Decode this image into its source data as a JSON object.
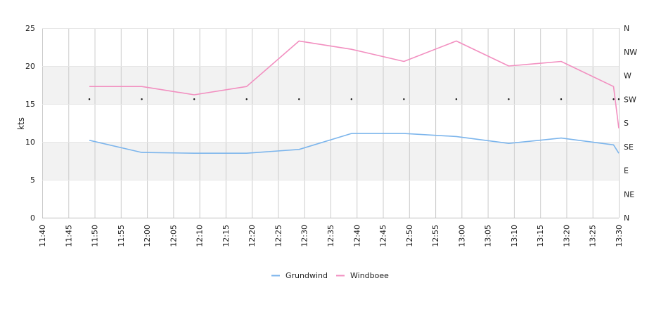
{
  "chart_data": {
    "type": "line",
    "ylabel": "kts",
    "ylim": [
      0,
      25
    ],
    "y_ticks": [
      0,
      5,
      10,
      15,
      20,
      25
    ],
    "y2_ticks": [
      "N",
      "NE",
      "E",
      "SE",
      "S",
      "SW",
      "W",
      "NW",
      "N"
    ],
    "x_ticks": [
      "11:40",
      "11:45",
      "11:50",
      "11:55",
      "12:00",
      "12:05",
      "12:10",
      "12:15",
      "12:20",
      "12:25",
      "12:30",
      "12:35",
      "12:40",
      "12:45",
      "12:50",
      "12:55",
      "13:00",
      "13:05",
      "13:10",
      "13:15",
      "13:20",
      "13:25",
      "13:30"
    ],
    "x_range": [
      "11:40",
      "13:30"
    ],
    "grid": true,
    "shaded_bands": [
      [
        5,
        10
      ],
      [
        15,
        20
      ]
    ],
    "legend_position": "bottom",
    "series": [
      {
        "name": "Grundwind",
        "color": "#7cb5ec",
        "points": [
          [
            "11:49",
            10.2
          ],
          [
            "11:59",
            8.6
          ],
          [
            "12:09",
            8.5
          ],
          [
            "12:19",
            8.5
          ],
          [
            "12:29",
            9.0
          ],
          [
            "12:39",
            11.1
          ],
          [
            "12:49",
            11.1
          ],
          [
            "12:59",
            10.7
          ],
          [
            "13:09",
            9.8
          ],
          [
            "13:19",
            10.5
          ],
          [
            "13:29",
            9.6
          ],
          [
            "13:30",
            8.5
          ]
        ]
      },
      {
        "name": "Windboee",
        "color": "#f28fc0",
        "points": [
          [
            "11:49",
            17.3
          ],
          [
            "11:59",
            17.3
          ],
          [
            "12:09",
            16.2
          ],
          [
            "12:19",
            17.3
          ],
          [
            "12:29",
            23.3
          ],
          [
            "12:39",
            22.2
          ],
          [
            "12:49",
            20.6
          ],
          [
            "12:59",
            23.3
          ],
          [
            "13:09",
            20.0
          ],
          [
            "13:19",
            20.6
          ],
          [
            "13:29",
            17.3
          ],
          [
            "13:30",
            11.8
          ]
        ]
      }
    ],
    "direction_points": [
      [
        "11:49",
        "SW"
      ],
      [
        "11:59",
        "SW"
      ],
      [
        "12:09",
        "SW"
      ],
      [
        "12:19",
        "SW"
      ],
      [
        "12:29",
        "SW"
      ],
      [
        "12:39",
        "SW"
      ],
      [
        "12:49",
        "SW"
      ],
      [
        "12:59",
        "SW"
      ],
      [
        "13:09",
        "SW"
      ],
      [
        "13:19",
        "SW"
      ],
      [
        "13:29",
        "SW"
      ],
      [
        "13:30",
        "SW"
      ]
    ]
  }
}
